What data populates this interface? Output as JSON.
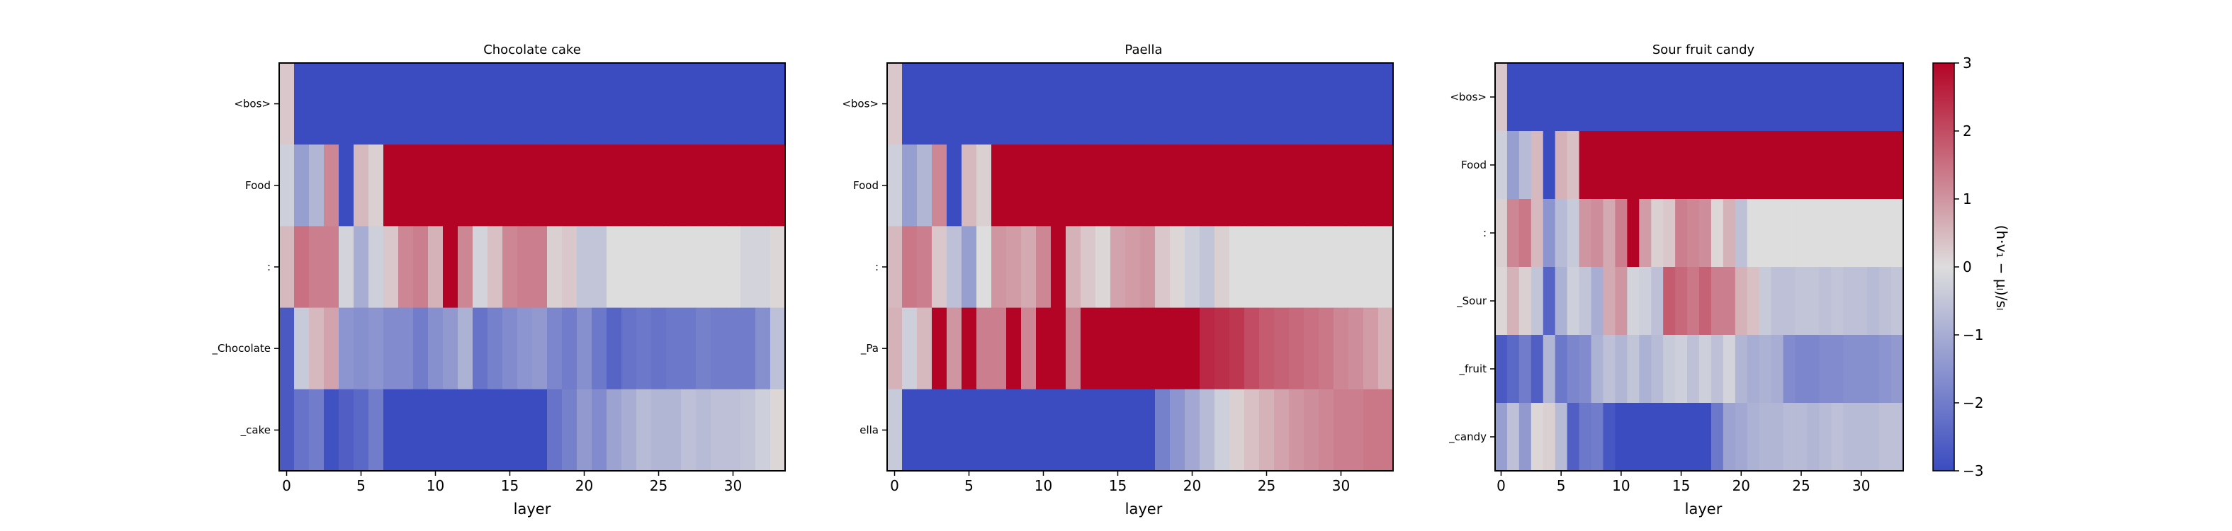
{
  "colors": {
    "low": "#3b4cc0",
    "mid": "#dddddd",
    "high": "#b40426"
  },
  "colorbar": {
    "label": "(h·v₁ − μₗ)/sₗ",
    "min": -3,
    "max": 3,
    "ticks": [
      "3",
      "2",
      "1",
      "0",
      "−1",
      "−2",
      "−3"
    ]
  },
  "chart_data": [
    {
      "type": "heatmap",
      "title": "Chocolate cake",
      "xlabel": "layer",
      "x_ticks": [
        "0",
        "5",
        "10",
        "15",
        "20",
        "25",
        "30"
      ],
      "x_range": [
        0,
        33
      ],
      "rows": [
        "<bos>",
        "Food",
        ":",
        "_Chocolate",
        "_cake"
      ],
      "values": [
        [
          0.3,
          -3,
          -3,
          -3,
          -3,
          -3,
          -3,
          -3,
          -3,
          -3,
          -3,
          -3,
          -3,
          -3,
          -3,
          -3,
          -3,
          -3,
          -3,
          -3,
          -3,
          -3,
          -3,
          -3,
          -3,
          -3,
          -3,
          -3,
          -3,
          -3,
          -3,
          -3,
          -3,
          -3
        ],
        [
          -0.3,
          -1.3,
          -0.8,
          1.2,
          -3,
          0.5,
          0.2,
          3,
          3,
          3,
          3,
          3,
          3,
          3,
          3,
          3,
          3,
          3,
          3,
          3,
          3,
          3,
          3,
          3,
          3,
          3,
          3,
          3,
          3,
          3,
          3,
          3,
          3,
          3
        ],
        [
          0.5,
          1.5,
          1.3,
          1.3,
          -0.2,
          -1.0,
          -0.3,
          0.3,
          1.2,
          1.3,
          0.6,
          3,
          1.2,
          -0.2,
          0.4,
          1.2,
          1.3,
          1.3,
          0.2,
          0.3,
          -0.5,
          -0.5,
          0,
          0,
          0,
          0,
          0,
          0,
          0,
          0,
          0,
          -0.2,
          -0.2,
          0.1
        ],
        [
          -2.7,
          -0.4,
          0.5,
          0.8,
          -1.5,
          -1.6,
          -1.5,
          -1.7,
          -1.7,
          -2.0,
          -1.6,
          -1.4,
          -0.9,
          -2.2,
          -1.9,
          -1.7,
          -1.5,
          -1.4,
          -1.8,
          -2.0,
          -1.6,
          -2.1,
          -2.5,
          -2.2,
          -2.1,
          -2.2,
          -2.1,
          -2.1,
          -1.9,
          -2.0,
          -2.0,
          -2.0,
          -1.6,
          -0.6
        ],
        [
          -2.7,
          -2.2,
          -2.0,
          -2.9,
          -2.6,
          -2.4,
          -2.0,
          -3,
          -3,
          -3,
          -3,
          -3,
          -3,
          -3,
          -3,
          -3,
          -3,
          -3,
          -2.2,
          -1.9,
          -1.4,
          -1.7,
          -1.2,
          -1.0,
          -0.7,
          -0.8,
          -0.8,
          -0.6,
          -0.7,
          -0.6,
          -0.6,
          -0.5,
          -0.3,
          0.1
        ]
      ]
    },
    {
      "type": "heatmap",
      "title": "Paella",
      "xlabel": "layer",
      "x_ticks": [
        "0",
        "5",
        "10",
        "15",
        "20",
        "25",
        "30"
      ],
      "x_range": [
        0,
        33
      ],
      "rows": [
        "<bos>",
        "Food",
        ":",
        "_Pa",
        "ella"
      ],
      "values": [
        [
          0.3,
          -3,
          -3,
          -3,
          -3,
          -3,
          -3,
          -3,
          -3,
          -3,
          -3,
          -3,
          -3,
          -3,
          -3,
          -3,
          -3,
          -3,
          -3,
          -3,
          -3,
          -3,
          -3,
          -3,
          -3,
          -3,
          -3,
          -3,
          -3,
          -3,
          -3,
          -3,
          -3,
          -3
        ],
        [
          -0.3,
          -1.3,
          -0.8,
          1.2,
          -3,
          0.5,
          0.2,
          3,
          3,
          3,
          3,
          3,
          3,
          3,
          3,
          3,
          3,
          3,
          3,
          3,
          3,
          3,
          3,
          3,
          3,
          3,
          3,
          3,
          3,
          3,
          3,
          3,
          3,
          3
        ],
        [
          0.5,
          1.4,
          1.3,
          0.3,
          -0.6,
          -1.3,
          0,
          1.0,
          0.9,
          0.7,
          1.2,
          3,
          0.6,
          0.3,
          0.1,
          0.8,
          0.9,
          1.0,
          0.3,
          0.1,
          -0.3,
          -0.5,
          0.2,
          0,
          0,
          0,
          0,
          0,
          0,
          0,
          0,
          0,
          0,
          0
        ],
        [
          0.6,
          -0.3,
          0.5,
          3,
          1.0,
          3,
          1.3,
          1.3,
          3,
          1.2,
          3,
          3,
          1.2,
          3,
          3,
          3,
          3,
          3,
          3,
          3,
          3,
          2.5,
          2.4,
          2.3,
          2.0,
          1.8,
          1.7,
          1.6,
          1.5,
          1.4,
          1.2,
          1.1,
          0.9,
          0.6
        ],
        [
          -0.4,
          -3,
          -3,
          -3,
          -3,
          -3,
          -3,
          -3,
          -3,
          -3,
          -3,
          -3,
          -3,
          -3,
          -3,
          -3,
          -3,
          -3,
          -1.9,
          -1.5,
          -1.1,
          -0.7,
          -0.3,
          0.2,
          0.4,
          0.6,
          0.8,
          1.0,
          1.1,
          1.2,
          1.3,
          1.3,
          1.4,
          1.4
        ]
      ]
    },
    {
      "type": "heatmap",
      "title": "Sour fruit candy",
      "xlabel": "layer",
      "x_ticks": [
        "0",
        "5",
        "10",
        "15",
        "20",
        "25",
        "30"
      ],
      "x_range": [
        0,
        33
      ],
      "rows": [
        "<bos>",
        "Food",
        ":",
        "_Sour",
        "_fruit",
        "_candy"
      ],
      "values": [
        [
          0.3,
          -3,
          -3,
          -3,
          -3,
          -3,
          -3,
          -3,
          -3,
          -3,
          -3,
          -3,
          -3,
          -3,
          -3,
          -3,
          -3,
          -3,
          -3,
          -3,
          -3,
          -3,
          -3,
          -3,
          -3,
          -3,
          -3,
          -3,
          -3,
          -3,
          -3,
          -3,
          -3,
          -3
        ],
        [
          -0.3,
          -1.3,
          -0.7,
          0.5,
          -3,
          0.6,
          0.4,
          3,
          3,
          3,
          3,
          3,
          3,
          3,
          3,
          3,
          3,
          3,
          3,
          3,
          3,
          3,
          3,
          3,
          3,
          3,
          3,
          3,
          3,
          3,
          3,
          3,
          3,
          3
        ],
        [
          0.2,
          1.2,
          1.4,
          0.5,
          -1.5,
          -0.7,
          -0.4,
          1.0,
          1.1,
          0.7,
          1.3,
          3,
          0.9,
          0.2,
          0.3,
          1.3,
          1.2,
          1.1,
          0.1,
          0.6,
          -0.6,
          0,
          0,
          0,
          0,
          0,
          0,
          0,
          0,
          0,
          0,
          0,
          0,
          0
        ],
        [
          0.1,
          0.6,
          0.2,
          -0.5,
          -2.5,
          -0.9,
          -0.3,
          -0.5,
          -1.0,
          0.7,
          1.0,
          -0.2,
          -0.3,
          -0.6,
          1.8,
          1.6,
          1.4,
          1.7,
          1.3,
          1.3,
          0.6,
          0.4,
          -0.4,
          -0.6,
          -0.6,
          -0.5,
          -0.5,
          -0.6,
          -0.5,
          -0.6,
          -0.6,
          -0.7,
          -0.6,
          -0.5
        ],
        [
          -2.7,
          -2.4,
          -2.0,
          -2.6,
          -0.8,
          -2.1,
          -1.8,
          -1.7,
          -0.9,
          -0.6,
          -0.8,
          -0.5,
          -0.9,
          -0.7,
          -0.4,
          -0.3,
          -0.6,
          -0.3,
          -0.6,
          -0.2,
          -0.8,
          -1.0,
          -0.9,
          -1.0,
          -1.7,
          -1.8,
          -1.8,
          -1.7,
          -1.7,
          -1.6,
          -1.6,
          -1.6,
          -1.5,
          -1.4
        ],
        [
          -1.3,
          -0.6,
          -1.4,
          0.1,
          0.2,
          -0.7,
          -2.6,
          -2.1,
          -2.0,
          -2.8,
          -3,
          -3,
          -3,
          -3,
          -3,
          -3,
          -3,
          -3,
          -2.1,
          -1.2,
          -1.1,
          -0.9,
          -0.8,
          -0.8,
          -0.7,
          -0.7,
          -0.8,
          -0.7,
          -0.6,
          -0.7,
          -0.7,
          -0.7,
          -0.6,
          -0.6
        ]
      ]
    }
  ]
}
